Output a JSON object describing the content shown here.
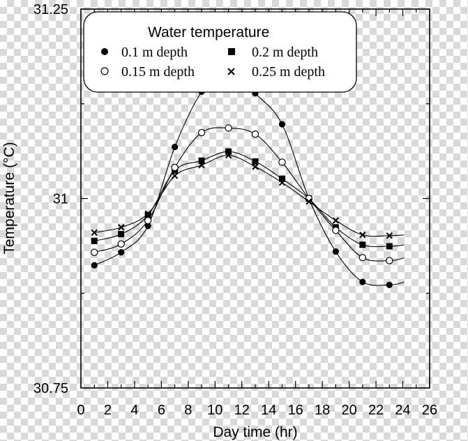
{
  "chart_data": {
    "type": "line",
    "xlabel": "Day time (hr)",
    "ylabel": "Temperature (°C)",
    "xlim": [
      0,
      26
    ],
    "ylim": [
      30.75,
      31.25
    ],
    "x_ticks": [
      0,
      2,
      4,
      6,
      8,
      10,
      12,
      14,
      16,
      18,
      20,
      22,
      24,
      26
    ],
    "y_ticks": [
      30.75,
      31,
      31.25
    ],
    "y_tick_labels": [
      "30.75",
      "31",
      "31.25"
    ],
    "grid": false,
    "legend": {
      "title": "Water temperature",
      "placement": "top-left",
      "entries": [
        "0.1 m depth",
        "0.2 m depth",
        "0.15 m depth",
        "0.25 m depth"
      ]
    },
    "x": [
      1,
      3,
      5,
      7,
      9,
      11,
      13,
      15,
      17,
      19,
      21,
      23
    ],
    "series": [
      {
        "name": "0.1 m depth",
        "marker": "filled-circle",
        "values": [
          30.912,
          30.929,
          30.964,
          31.068,
          31.141,
          31.175,
          31.139,
          31.098,
          31.0,
          30.93,
          30.89,
          30.886
        ]
      },
      {
        "name": "0.2 m depth",
        "marker": "filled-square",
        "values": [
          30.944,
          30.953,
          30.978,
          31.037,
          31.05,
          31.062,
          31.049,
          31.026,
          31.0,
          30.962,
          30.939,
          30.937
        ]
      },
      {
        "name": "0.15 m depth",
        "marker": "open-circle",
        "values": [
          30.929,
          30.94,
          30.971,
          31.041,
          31.087,
          31.093,
          31.085,
          31.048,
          31.0,
          30.958,
          30.922,
          30.918
        ]
      },
      {
        "name": "0.25 m depth",
        "marker": "x-cross",
        "values": [
          30.955,
          30.962,
          30.98,
          31.03,
          31.044,
          31.057,
          31.042,
          31.021,
          30.996,
          30.971,
          30.952,
          30.951
        ]
      }
    ]
  }
}
